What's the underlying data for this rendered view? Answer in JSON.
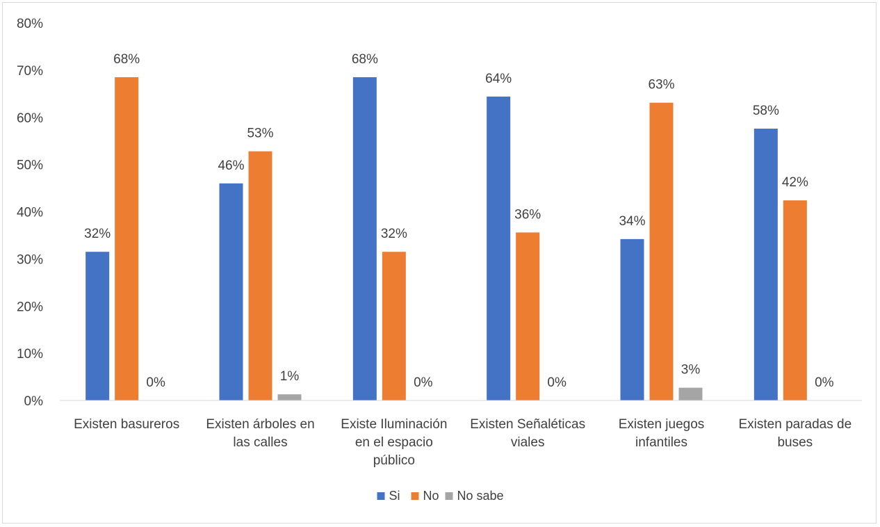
{
  "chart_data": {
    "type": "bar",
    "title": "",
    "xlabel": "",
    "ylabel": "",
    "ylim": [
      0,
      80
    ],
    "yticks": [
      "0%",
      "10%",
      "20%",
      "30%",
      "40%",
      "50%",
      "60%",
      "70%",
      "80%"
    ],
    "categories": [
      [
        "Existen basureros"
      ],
      [
        "Existen árboles en",
        "las calles"
      ],
      [
        "Existe Iluminación",
        "en el espacio",
        "público"
      ],
      [
        "Existen Señaléticas",
        "viales"
      ],
      [
        "Existen juegos",
        "infantiles"
      ],
      [
        "Existen paradas de",
        "buses"
      ]
    ],
    "series": [
      {
        "name": "Si",
        "color": "#4472c4",
        "values": [
          31.5,
          46,
          68.5,
          64.4,
          34.2,
          57.6
        ],
        "labels": [
          "32%",
          "46%",
          "68%",
          "64%",
          "34%",
          "58%"
        ]
      },
      {
        "name": "No",
        "color": "#ed7d31",
        "values": [
          68.5,
          52.8,
          31.5,
          35.6,
          63.1,
          42.4
        ],
        "labels": [
          "68%",
          "53%",
          "32%",
          "36%",
          "63%",
          "42%"
        ]
      },
      {
        "name": "No sabe",
        "color": "#a5a5a5",
        "values": [
          0,
          1.3,
          0,
          0,
          2.7,
          0
        ],
        "labels": [
          "0%",
          "1%",
          "0%",
          "0%",
          "3%",
          "0%"
        ]
      }
    ],
    "grid": false,
    "legend": "bottom"
  }
}
